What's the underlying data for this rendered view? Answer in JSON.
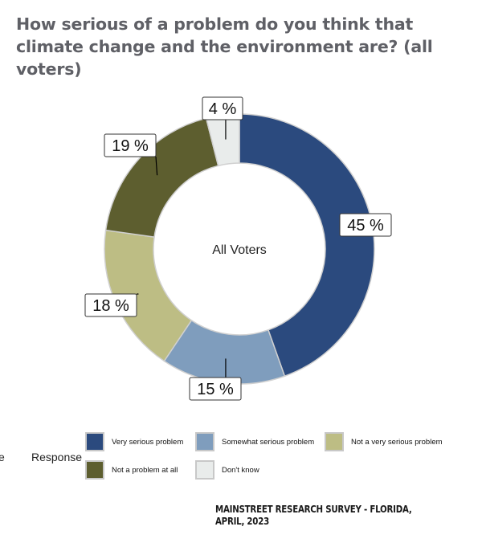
{
  "title": "How serious of a problem do you think that climate change and the environment are? (all voters)",
  "source": "MAINSTREET RESEARCH SURVEY - FLORIDA, APRIL, 2023",
  "chart_data": {
    "type": "pie",
    "variant": "donut",
    "title": "How serious of a problem do you think that climate change and the environment are? (all voters)",
    "center_label": "All Voters",
    "categories": [
      "Very serious problem",
      "Somewhat serious problem",
      "Not a very serious problem",
      "Not a problem at all",
      "Don't know"
    ],
    "values": [
      45,
      15,
      18,
      19,
      4
    ],
    "labels": [
      "45 %",
      "15 %",
      "18 %",
      "19 %",
      "4 %"
    ],
    "colors": [
      "#2b4a7e",
      "#7f9dbd",
      "#bdbd84",
      "#5d5e2f",
      "#e9eceb"
    ],
    "units": "%",
    "legend": {
      "title": "Response",
      "placement": "bottom",
      "items": [
        {
          "label": "Very serious problem",
          "color": "#2b4a7e"
        },
        {
          "label": "Somewhat serious problem",
          "color": "#7f9dbd"
        },
        {
          "label": "Not a very serious problem",
          "color": "#bdbd84"
        },
        {
          "label": "Not a problem at all",
          "color": "#5d5e2f"
        },
        {
          "label": "Don't know",
          "color": "#e9eceb"
        }
      ]
    }
  }
}
